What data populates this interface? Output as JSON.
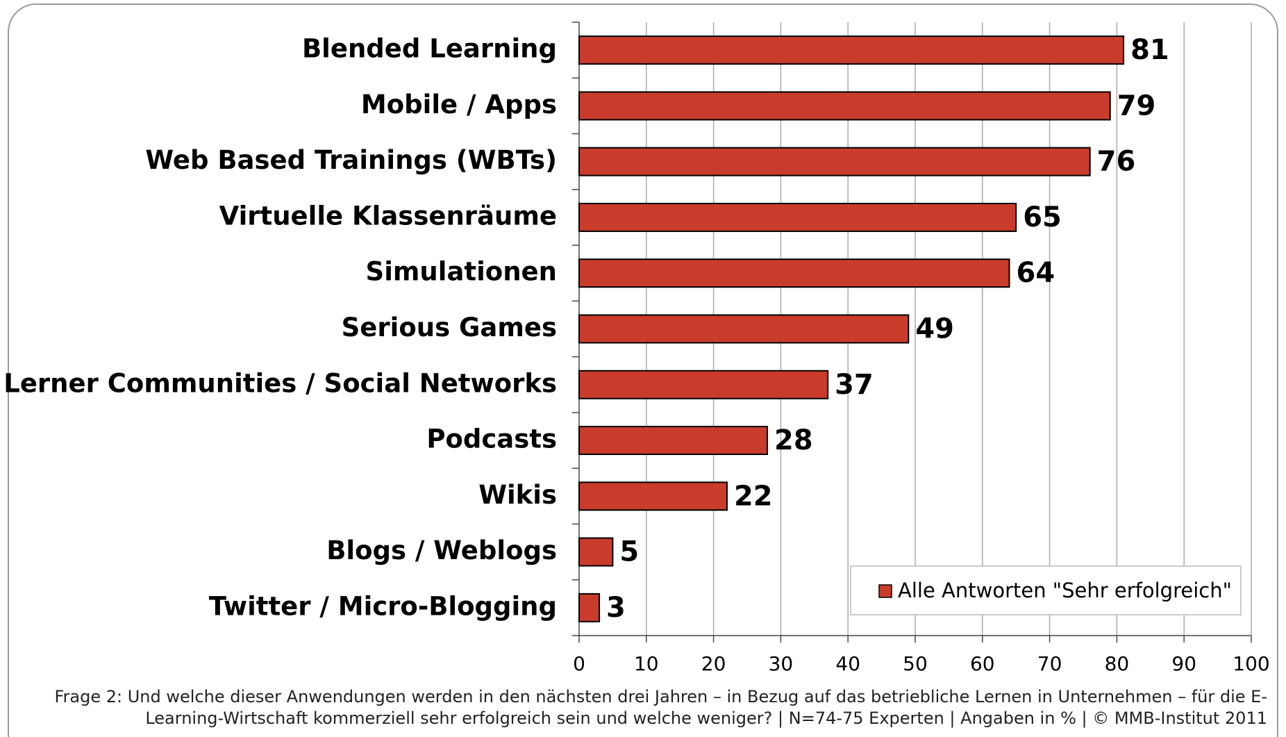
{
  "chart_data": {
    "type": "bar",
    "orientation": "horizontal",
    "categories": [
      "Blended Learning",
      "Mobile / Apps",
      "Web Based Trainings (WBTs)",
      "Virtuelle Klassenräume",
      "Simulationen",
      "Serious Games",
      "Lerner Communities / Social Networks",
      "Podcasts",
      "Wikis",
      "Blogs / Weblogs",
      "Twitter / Micro-Blogging"
    ],
    "series": [
      {
        "name": "Alle Antworten \"Sehr erfolgreich\"",
        "color": "#c93c2b",
        "values": [
          81,
          79,
          76,
          65,
          64,
          49,
          37,
          28,
          22,
          5,
          3
        ]
      }
    ],
    "xlim": [
      0,
      100
    ],
    "xticks": [
      0,
      10,
      20,
      30,
      40,
      50,
      60,
      70,
      80,
      90,
      100
    ],
    "grid": true,
    "legend": "lower right",
    "footnote": [
      "Frage 2: Und welche dieser Anwendungen werden in den nächsten drei Jahren – in Bezug auf das betriebliche Lernen in Unternehmen – für die E-",
      "Learning-Wirtschaft kommerziell sehr erfolgreich sein und welche weniger? | N=74-75 Experten | Angaben in % | © MMB-Institut 2011"
    ]
  }
}
